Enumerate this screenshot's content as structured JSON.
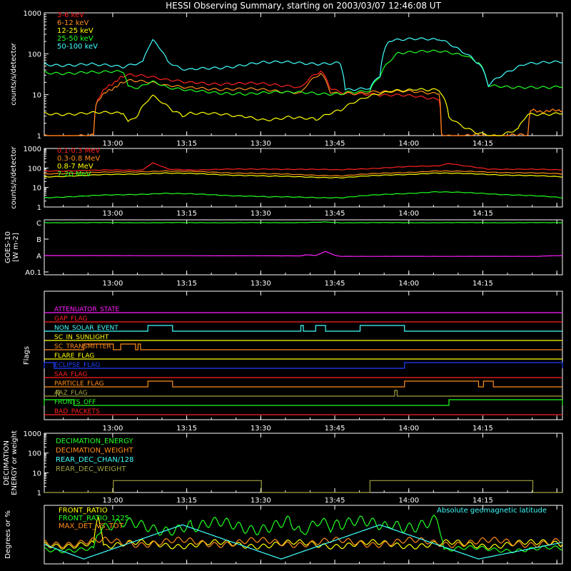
{
  "title": "HESSI Observing Summary, starting on 2003/03/07 12:46:08 UT",
  "colors": {
    "background": "#000000",
    "axis": "#ffffff",
    "red": "#ff2020",
    "orange": "#ff8c1a",
    "yellow": "#ffff00",
    "green": "#20ff20",
    "cyan": "#40ffff",
    "magenta": "#ff20ff",
    "blue": "#2040ff",
    "olive": "#a0a040",
    "lightgreen": "#80ff80",
    "darkred": "#cc2020"
  },
  "time_ticks": [
    "13:00",
    "13:15",
    "13:30",
    "13:45",
    "14:00",
    "14:15"
  ],
  "chart_data": [
    {
      "id": "xray-low",
      "type": "line",
      "title": "",
      "ylabel": "counts/s/detector",
      "yscale": "log",
      "ylim": [
        1,
        1000
      ],
      "yticks": [
        "1",
        "10",
        "100",
        "1000"
      ],
      "x_units": "minutes after 12:46:08 UT",
      "xlim": [
        0,
        105
      ],
      "series": [
        {
          "name": "3-6 keV",
          "color": "red",
          "x": [
            0,
            10,
            10.5,
            16,
            18,
            25,
            30,
            50,
            52,
            56,
            58,
            60,
            68,
            80,
            80.5,
            98,
            98.5,
            105
          ],
          "y": [
            1,
            1,
            6,
            28,
            30,
            22,
            20,
            17,
            15,
            40,
            15,
            12,
            10,
            8,
            1,
            1,
            4,
            4
          ]
        },
        {
          "name": "6-12 keV",
          "color": "orange",
          "x": [
            0,
            10,
            10.5,
            16,
            18,
            25,
            30,
            50,
            52,
            56,
            58,
            60,
            68,
            80,
            80.5,
            98,
            98.5,
            105
          ],
          "y": [
            1,
            1,
            6,
            20,
            22,
            16,
            15,
            12,
            11,
            35,
            12,
            11,
            12,
            11,
            1,
            1,
            4,
            4
          ]
        },
        {
          "name": "12-25 keV",
          "color": "yellow",
          "x": [
            0,
            16,
            17,
            19,
            20,
            22,
            24,
            26,
            28,
            30,
            40,
            45,
            50,
            55,
            60,
            65,
            70,
            75,
            80,
            82,
            84,
            86,
            88,
            92,
            96,
            98,
            100,
            105
          ],
          "y": [
            3.5,
            3.5,
            2,
            3,
            5,
            9,
            6,
            4,
            3,
            3.5,
            3,
            2.5,
            3,
            2.5,
            4,
            8,
            12,
            14,
            14,
            3,
            2,
            1.5,
            1.2,
            1,
            1.5,
            3.5,
            3.5,
            3.5
          ]
        },
        {
          "name": "25-50 keV",
          "color": "green",
          "x": [
            0,
            10,
            16,
            17,
            19,
            22,
            25,
            30,
            40,
            50,
            60,
            61,
            66,
            68,
            72,
            80,
            85,
            88,
            90,
            98,
            100,
            105
          ],
          "y": [
            35,
            35,
            35,
            15,
            14,
            20,
            14,
            12,
            11,
            11,
            11,
            12,
            13,
            30,
            110,
            110,
            90,
            60,
            16,
            16,
            16,
            16
          ]
        },
        {
          "name": "50-100 keV",
          "color": "cyan",
          "x": [
            0,
            10,
            16,
            20,
            22,
            25,
            28,
            30,
            45,
            60,
            61,
            66,
            68,
            70,
            80,
            85,
            88,
            90,
            98,
            105
          ],
          "y": [
            55,
            55,
            45,
            60,
            200,
            60,
            40,
            40,
            60,
            60,
            14,
            14,
            30,
            220,
            220,
            110,
            60,
            17,
            60,
            60
          ]
        }
      ]
    },
    {
      "id": "xray-high",
      "type": "line",
      "ylabel": "counts/s/detector",
      "yscale": "log",
      "ylim": [
        1,
        1000
      ],
      "yticks": [
        "1",
        "10",
        "100",
        "1000"
      ],
      "xlim": [
        0,
        105
      ],
      "series": [
        {
          "name": "0.1-0.3 MeV",
          "color": "red",
          "x": [
            0,
            20,
            22,
            25,
            30,
            45,
            60,
            80,
            82,
            85,
            90,
            105
          ],
          "y": [
            70,
            80,
            180,
            90,
            80,
            90,
            80,
            130,
            170,
            130,
            90,
            80
          ]
        },
        {
          "name": "0.3-0.8 MeV",
          "color": "orange",
          "x": [
            0,
            25,
            45,
            60,
            80,
            105
          ],
          "y": [
            50,
            70,
            50,
            40,
            70,
            50
          ]
        },
        {
          "name": "0.8-7 MeV",
          "color": "yellow",
          "x": [
            0,
            25,
            45,
            60,
            80,
            105
          ],
          "y": [
            35,
            55,
            38,
            32,
            55,
            35
          ]
        },
        {
          "name": "7-20 MeV",
          "color": "green",
          "x": [
            0,
            25,
            45,
            60,
            80,
            105
          ],
          "y": [
            3,
            5,
            3.3,
            3,
            6,
            3
          ]
        }
      ]
    },
    {
      "id": "goes",
      "type": "line",
      "ylabel": "GOES-10 [W m-2]",
      "ylabel_lines": [
        "GOES-10",
        "[W m-2]"
      ],
      "ylevels": [
        "A0.1",
        "A",
        "B",
        "C"
      ],
      "xlim": [
        0,
        105
      ],
      "series": [
        {
          "name": "",
          "color": "green",
          "x": [
            0,
            50,
            54,
            57,
            60,
            105
          ],
          "y": [
            3.0,
            3.0,
            3.02,
            3.05,
            3.0,
            3.0
          ]
        },
        {
          "name": "",
          "color": "magenta",
          "x": [
            0,
            52,
            53,
            55,
            57,
            59,
            60,
            100,
            102,
            105
          ],
          "y": [
            1.0,
            0.98,
            1.05,
            1.0,
            1.25,
            1.0,
            0.95,
            0.95,
            0.98,
            1.0
          ]
        }
      ]
    },
    {
      "id": "flags",
      "type": "line",
      "ylabel": "Flags",
      "xlim": [
        0,
        105
      ],
      "flags": [
        {
          "label": "ATTENUATOR_STATE",
          "color": "magenta",
          "on": []
        },
        {
          "label": "GAP_FLAG",
          "color": "red",
          "on": []
        },
        {
          "label": "NON_SOLAR_EVENT",
          "color": "cyan",
          "on": [
            [
              21,
              26
            ],
            [
              52,
              52.5
            ],
            [
              55,
              57
            ],
            [
              64,
              73
            ]
          ]
        },
        {
          "label": "SC_IN_SUNLIGHT",
          "color": "yellow",
          "on": []
        },
        {
          "label": "SC_TRANSMITTER",
          "color": "orange",
          "on": [
            [
              8,
              14
            ],
            [
              15.5,
              18.5
            ],
            [
              19,
              19.5
            ]
          ]
        },
        {
          "label": "FLARE_FLAG",
          "color": "yellow",
          "on": []
        },
        {
          "label": "ECLIPSE_FLAG",
          "color": "blue",
          "on": [
            [
              0,
              2
            ],
            [
              73,
              105
            ]
          ]
        },
        {
          "label": "SAA_FLAG",
          "color": "red",
          "on": []
        },
        {
          "label": "PARTICLE_FLAG",
          "color": "orange",
          "on": [
            [
              21,
              26
            ],
            [
              73,
              88
            ],
            [
              89,
              91
            ]
          ]
        },
        {
          "label": "AAZ_FLAG",
          "color": "olive",
          "on": [
            [
              2.5,
              3
            ],
            [
              71,
              71.5
            ]
          ]
        },
        {
          "label": "FRONTS_OFF",
          "color": "green",
          "on": [
            [
              0,
              6
            ],
            [
              82,
              105
            ]
          ]
        },
        {
          "label": "BAD_PACKETS",
          "color": "red",
          "on": []
        }
      ]
    },
    {
      "id": "decimation",
      "type": "line",
      "ylabel": "DECIMATION ENERGY or weight",
      "ylabel_lines": [
        "DECIMATION",
        "ENERGY or weight"
      ],
      "yscale": "log",
      "ylim": [
        1,
        1000
      ],
      "yticks": [
        "1",
        "10",
        "100",
        "1000"
      ],
      "xlim": [
        0,
        105
      ],
      "series": [
        {
          "name": "DECIMATION_ENERGY",
          "color": "green",
          "x": [],
          "y": []
        },
        {
          "name": "DECIMATION_WEIGHT",
          "color": "orange",
          "x": [],
          "y": []
        },
        {
          "name": "REAR_DEC_CHAN/128",
          "color": "cyan",
          "x": [],
          "y": []
        },
        {
          "name": "REAR_DEC_WEIGHT",
          "color": "olive",
          "x": [
            0,
            14,
            14,
            44,
            44,
            66,
            66,
            99,
            99,
            105
          ],
          "y": [
            1,
            1,
            4,
            4,
            1,
            1,
            4,
            4,
            1,
            1
          ]
        }
      ]
    },
    {
      "id": "ratios",
      "type": "line",
      "ylabel": "Degrees or %",
      "ylim": [
        0,
        60
      ],
      "xlim": [
        0,
        105
      ],
      "series": [
        {
          "name": "FRONT_RATIO",
          "color": "yellow",
          "x": [
            0,
            10,
            11,
            12,
            100,
            105
          ],
          "y": [
            20,
            20,
            60,
            20,
            20,
            20
          ]
        },
        {
          "name": "FRONT_RATIO_1225",
          "color": "green",
          "x": [
            0,
            10,
            11,
            30,
            50,
            52,
            56,
            58,
            60,
            70,
            80,
            81,
            105
          ],
          "y": [
            15,
            15,
            38,
            38,
            40,
            30,
            40,
            35,
            38,
            42,
            42,
            15,
            15
          ]
        },
        {
          "name": "MAX_DET_VS_TOT",
          "color": "orange",
          "x": [
            0,
            105
          ],
          "y": [
            22,
            22
          ]
        },
        {
          "name": "Absolute geomagnetic latitude",
          "color": "cyan",
          "x": [
            0,
            8,
            28,
            48,
            68,
            88,
            105
          ],
          "y": [
            20,
            5,
            40,
            5,
            40,
            5,
            22
          ]
        }
      ]
    }
  ]
}
